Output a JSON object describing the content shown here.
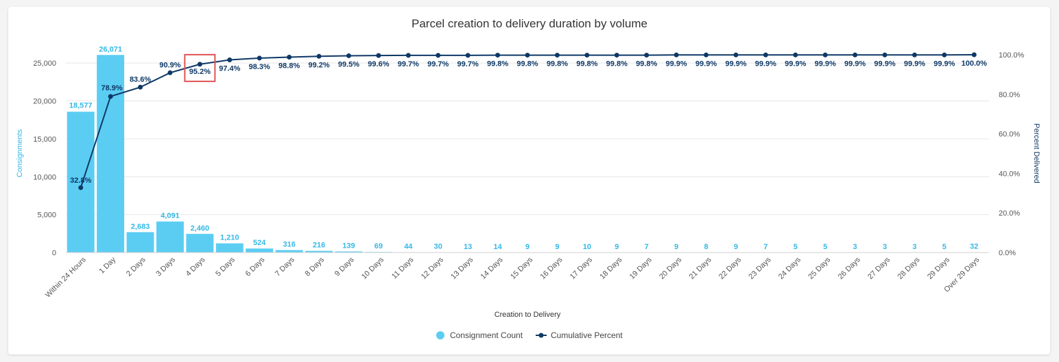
{
  "colors": {
    "bar": "#5bcdf3",
    "line": "#0e3866",
    "highlight": "#e05252",
    "grid": "#e6e6e6"
  },
  "chart_data": {
    "type": "bar",
    "title": "Parcel creation to delivery duration by volume",
    "xlabel": "Creation to Delivery",
    "ylabel": "Consignments",
    "y2label": "Percent Delivered",
    "ylim": [
      0,
      27000
    ],
    "y2lim": [
      0,
      100
    ],
    "yticks": [
      "0",
      "5,000",
      "10,000",
      "15,000",
      "20,000",
      "25,000"
    ],
    "yticks_values": [
      0,
      5000,
      10000,
      15000,
      20000,
      25000
    ],
    "y2ticks": [
      "0.0%",
      "20.0%",
      "40.0%",
      "60.0%",
      "80.0%",
      "100.0%"
    ],
    "y2ticks_values": [
      0,
      20,
      40,
      60,
      80,
      100
    ],
    "categories": [
      "Within 24 Hours",
      "1 Day",
      "2 Days",
      "3 Days",
      "4 Days",
      "5 Days",
      "6 Days",
      "7 Days",
      "8 Days",
      "9 Days",
      "10 Days",
      "11 Days",
      "12 Days",
      "13 Days",
      "14 Days",
      "15 Days",
      "16 Days",
      "17 Days",
      "18 Days",
      "19 Days",
      "20 Days",
      "21 Days",
      "22 Days",
      "23 Days",
      "24 Days",
      "25 Days",
      "26 Days",
      "27 Days",
      "28 Days",
      "29 Days",
      "Over 29 Days"
    ],
    "series": [
      {
        "name": "Consignment Count",
        "kind": "bar",
        "values": [
          18577,
          26071,
          2683,
          4091,
          2460,
          1210,
          524,
          316,
          216,
          139,
          69,
          44,
          30,
          13,
          14,
          9,
          9,
          10,
          9,
          7,
          9,
          8,
          9,
          7,
          5,
          5,
          3,
          3,
          3,
          5,
          32
        ],
        "labels": [
          "18,577",
          "26,071",
          "2,683",
          "4,091",
          "2,460",
          "1,210",
          "524",
          "316",
          "216",
          "139",
          "69",
          "44",
          "30",
          "13",
          "14",
          "9",
          "9",
          "10",
          "9",
          "7",
          "9",
          "8",
          "9",
          "7",
          "5",
          "5",
          "3",
          "3",
          "3",
          "5",
          "32"
        ]
      },
      {
        "name": "Cumulative Percent",
        "kind": "line",
        "axis": "right",
        "values": [
          32.8,
          78.9,
          83.6,
          90.9,
          95.2,
          97.4,
          98.3,
          98.8,
          99.2,
          99.5,
          99.6,
          99.7,
          99.7,
          99.7,
          99.8,
          99.8,
          99.8,
          99.8,
          99.8,
          99.8,
          99.9,
          99.9,
          99.9,
          99.9,
          99.9,
          99.9,
          99.9,
          99.9,
          99.9,
          99.9,
          100.0
        ],
        "labels": [
          "32.8%",
          "78.9%",
          "83.6%",
          "90.9%",
          "95.2%",
          "97.4%",
          "98.3%",
          "98.8%",
          "99.2%",
          "99.5%",
          "99.6%",
          "99.7%",
          "99.7%",
          "99.7%",
          "99.8%",
          "99.8%",
          "99.8%",
          "99.8%",
          "99.8%",
          "99.8%",
          "99.9%",
          "99.9%",
          "99.9%",
          "99.9%",
          "99.9%",
          "99.9%",
          "99.9%",
          "99.9%",
          "99.9%",
          "99.9%",
          "100.0%"
        ]
      }
    ],
    "highlighted_category": "4 Days",
    "grid": true,
    "legend_position": "bottom-center"
  }
}
